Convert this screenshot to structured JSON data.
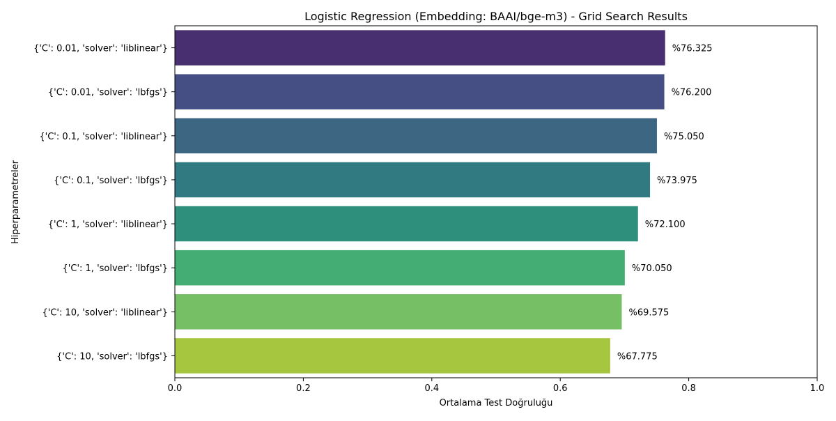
{
  "chart_data": {
    "type": "bar",
    "orientation": "horizontal",
    "title": "Logistic Regression (Embedding: BAAI/bge-m3) - Grid Search Results",
    "xlabel": "Ortalama Test Doğruluğu",
    "ylabel": "Hiperparametreler",
    "xlim": [
      0.0,
      1.0
    ],
    "xticks": [
      "0.0",
      "0.2",
      "0.4",
      "0.6",
      "0.8",
      "1.0"
    ],
    "grid": false,
    "categories": [
      "{'C': 0.01, 'solver': 'liblinear'}",
      "{'C': 0.01, 'solver': 'lbfgs'}",
      "{'C': 0.1, 'solver': 'liblinear'}",
      "{'C': 0.1, 'solver': 'lbfgs'}",
      "{'C': 1, 'solver': 'liblinear'}",
      "{'C': 1, 'solver': 'lbfgs'}",
      "{'C': 10, 'solver': 'liblinear'}",
      "{'C': 10, 'solver': 'lbfgs'}"
    ],
    "values": [
      0.76325,
      0.762,
      0.7505,
      0.73975,
      0.721,
      0.7005,
      0.69575,
      0.67775
    ],
    "data_labels": [
      "%76.325",
      "%76.200",
      "%75.050",
      "%73.975",
      "%72.100",
      "%70.050",
      "%69.575",
      "%67.775"
    ],
    "colors": [
      "#482f6f",
      "#454f84",
      "#3d6683",
      "#317a81",
      "#2e907c",
      "#44ad73",
      "#77bf64",
      "#a7c63f"
    ]
  }
}
